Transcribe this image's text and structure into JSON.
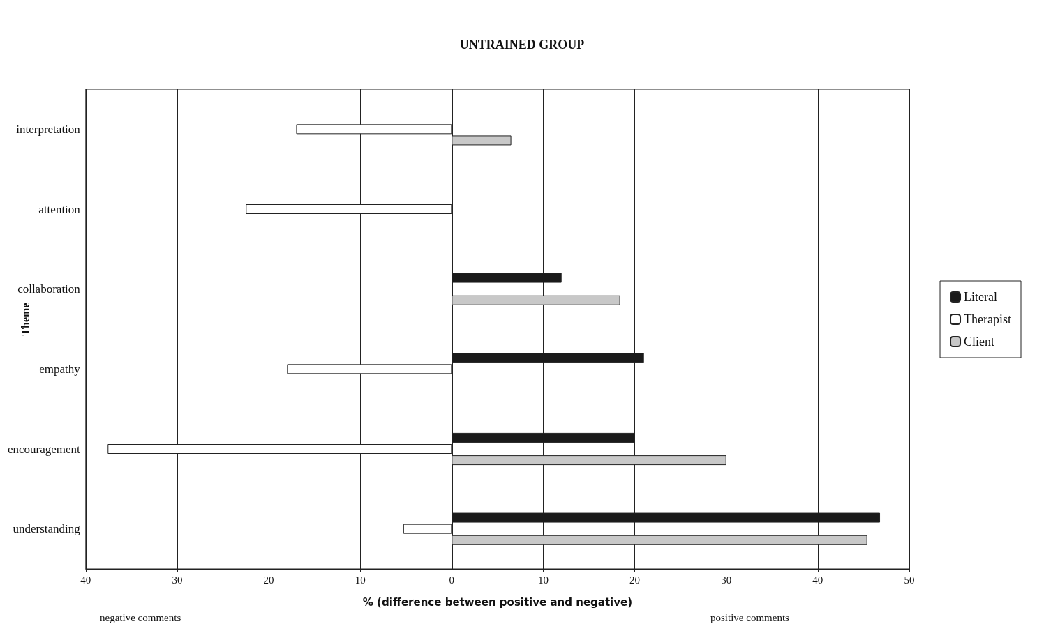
{
  "chart_data": {
    "type": "bar",
    "orientation": "horizontal",
    "title": "UNTRAINED GROUP",
    "xlabel": "% (difference between positive and negative)",
    "ylabel": "Theme",
    "categories": [
      "interpretation",
      "attention",
      "collaboration",
      "empathy",
      "encouragement",
      "understanding"
    ],
    "series": [
      {
        "name": "Literal",
        "color": "#1a1a1a",
        "values": [
          null,
          null,
          12,
          21,
          20,
          46.8
        ]
      },
      {
        "name": "Therapist",
        "color": "#ffffff",
        "values": [
          -17,
          -22.5,
          null,
          -18,
          -37.6,
          -5.3
        ]
      },
      {
        "name": "Client",
        "color": "#c8c8c8",
        "values": [
          6.5,
          null,
          18.4,
          null,
          30,
          45.4
        ]
      }
    ],
    "xlim": [
      -40,
      50
    ],
    "xticks": [
      {
        "value": -40,
        "label": "40"
      },
      {
        "value": -30,
        "label": "30"
      },
      {
        "value": -20,
        "label": "20"
      },
      {
        "value": -10,
        "label": "10"
      },
      0,
      10,
      20,
      30,
      40,
      50
    ],
    "grid": "x",
    "legend": "right",
    "annotations": [
      "negative comments",
      "positive comments"
    ]
  }
}
